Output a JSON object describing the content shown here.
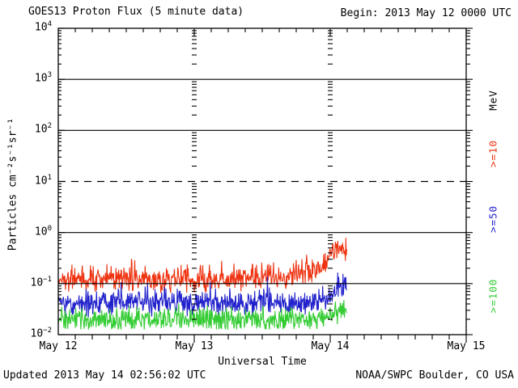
{
  "header": {
    "begin": "Begin: 2013 May 12 0000 UTC"
  },
  "footer": {
    "updated": "Updated 2013 May 14 02:56:02 UTC",
    "source": "NOAA/SWPC Boulder, CO USA"
  },
  "colors": {
    "red": "#ee3311",
    "blue": "#2222cc",
    "green": "#33cc33",
    "axis": "#000000",
    "background": "#ffffff"
  },
  "chart_data": {
    "type": "line",
    "title": "GOES13 Proton Flux (5 minute data)",
    "xlabel": "Universal Time",
    "ylabel": "Particles cm⁻²s⁻¹sr⁻¹",
    "x_start": "2013 May 12 0000 UTC",
    "x_days": 3,
    "x_tick_labels": [
      "May 12",
      "May 13",
      "May 14",
      "May 15"
    ],
    "y_scale": "log",
    "ylim": [
      0.01,
      10000
    ],
    "y_tick_exponents": [
      4,
      3,
      2,
      1,
      0,
      -1,
      -2
    ],
    "grid": {
      "solid_lines_at": [
        1000,
        100,
        1,
        0.1
      ],
      "dashed_line_at": 10,
      "day_dotted_columns_hours": [
        24,
        48
      ],
      "minor_x_tick_hours": 3
    },
    "right_axis_labels": [
      {
        "text": "MeV",
        "color": "#000000"
      },
      {
        "text": ">=10",
        "color": "#ee3311"
      },
      {
        "text": ">=50",
        "color": "#2222cc"
      },
      {
        "text": ">=100",
        "color": "#33cc33"
      }
    ],
    "cadence_minutes": 5,
    "data_end_hours_from_start": 50.93,
    "series": [
      {
        "name": "protons >=10 MeV",
        "color": "#ee3311",
        "trend_points_hour_flux": [
          [
            0,
            0.12
          ],
          [
            24,
            0.12
          ],
          [
            40,
            0.13
          ],
          [
            45,
            0.17
          ],
          [
            47.5,
            0.28
          ],
          [
            49,
            0.5
          ],
          [
            49.8,
            0.55
          ],
          [
            50.9,
            0.4
          ]
        ],
        "noise_sigma": 0.5,
        "floor": 0.065,
        "spike_prob": 0.06,
        "spike_factor": 1.8
      },
      {
        "name": "protons >=50 MeV",
        "color": "#2222cc",
        "trend_points_hour_flux": [
          [
            0,
            0.042
          ],
          [
            44,
            0.042
          ],
          [
            48,
            0.055
          ],
          [
            49.5,
            0.09
          ],
          [
            50.9,
            0.08
          ]
        ],
        "noise_sigma": 0.55,
        "floor": 0.022,
        "spike_prob": 0.05,
        "spike_factor": 1.6
      },
      {
        "name": "protons >=100 MeV",
        "color": "#33cc33",
        "trend_points_hour_flux": [
          [
            0,
            0.019
          ],
          [
            46,
            0.019
          ],
          [
            49.5,
            0.026
          ],
          [
            50.9,
            0.028
          ]
        ],
        "noise_sigma": 0.5,
        "floor": 0.0125,
        "spike_prob": 0.04,
        "spike_factor": 1.5
      }
    ]
  }
}
